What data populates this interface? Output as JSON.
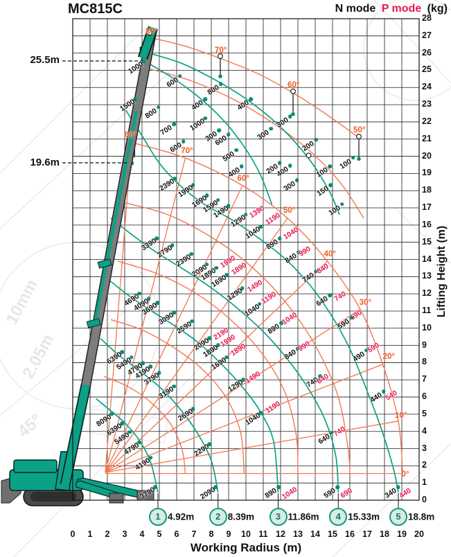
{
  "window": {
    "title": "MC815C"
  },
  "legend": {
    "n": "N mode",
    "p": "P mode",
    "unit": "(kg)"
  },
  "axes": {
    "x_label": "Working Radius (m)",
    "y_label": "Lifting Height (m)",
    "x_ticks": [
      0,
      1,
      2,
      3,
      4,
      5,
      6,
      7,
      8,
      9,
      10,
      11,
      12,
      13,
      14,
      15,
      16,
      17,
      18,
      19,
      20
    ],
    "y_ticks": [
      0,
      1,
      2,
      3,
      4,
      5,
      6,
      7,
      8,
      9,
      10,
      11,
      12,
      13,
      14,
      15,
      16,
      17,
      18,
      19,
      20,
      21,
      22,
      23,
      24,
      25,
      26,
      27,
      28
    ]
  },
  "height_markers": [
    {
      "label": "25.5m",
      "y": 25.5
    },
    {
      "label": "19.6m",
      "y": 19.6
    }
  ],
  "boom_stages": [
    {
      "no": "1",
      "radius_label": "4.92m",
      "r": 4.92
    },
    {
      "no": "2",
      "radius_label": "8.39m",
      "r": 8.39
    },
    {
      "no": "3",
      "radius_label": "11.86m",
      "r": 11.86
    },
    {
      "no": "4",
      "radius_label": "15.33m",
      "r": 15.33
    },
    {
      "no": "5",
      "radius_label": "18.8m",
      "r": 18.8
    }
  ],
  "colors": {
    "teal": "#0aa187",
    "orange": "#f4764f",
    "p_text": "#e8174f",
    "n_text": "#101010"
  },
  "watermark": [
    "10mm",
    "2.05m",
    "45°"
  ],
  "chart_data": {
    "type": "line",
    "title": "MC815C crane working range / rated load chart",
    "x_axis": "Working Radius (m)",
    "y_axis": "Lifting Height (m)",
    "xlim": [
      0,
      20
    ],
    "ylim": [
      0,
      28
    ],
    "grid": true,
    "legend_entries": [
      "N mode (kg)",
      "P mode (kg)"
    ],
    "angle_labels": [
      {
        "x": 4.55,
        "y": 27.25,
        "t": "80°"
      },
      {
        "x": 8.55,
        "y": 26.15,
        "t": "70°"
      },
      {
        "x": 12.75,
        "y": 24.15,
        "t": "60°"
      },
      {
        "x": 16.55,
        "y": 21.5,
        "t": "50°"
      },
      {
        "x": 3.35,
        "y": 21.25,
        "t": "80°"
      },
      {
        "x": 6.6,
        "y": 20.3,
        "t": "70°"
      },
      {
        "x": 9.85,
        "y": 18.7,
        "t": "60°"
      },
      {
        "x": 12.5,
        "y": 16.85,
        "t": "50°"
      },
      {
        "x": 14.85,
        "y": 14.3,
        "t": "40°"
      },
      {
        "x": 16.9,
        "y": 11.5,
        "t": "30°"
      },
      {
        "x": 18.25,
        "y": 8.35,
        "t": "20°"
      },
      {
        "x": 18.95,
        "y": 4.9,
        "t": "10°"
      },
      {
        "x": 19.2,
        "y": 1.5,
        "t": "0°"
      }
    ],
    "capacity_labels": [
      {
        "x": 3.65,
        "y": 25.15,
        "v": "1000",
        "m": "n"
      },
      {
        "x": 5.75,
        "y": 24.3,
        "v": "600",
        "m": "n"
      },
      {
        "x": 8.1,
        "y": 23.85,
        "v": "800",
        "m": "n"
      },
      {
        "x": 7.2,
        "y": 22.95,
        "v": "400",
        "m": "n"
      },
      {
        "x": 9.85,
        "y": 22.95,
        "v": "400",
        "m": "n"
      },
      {
        "x": 4.5,
        "y": 22.5,
        "v": "800",
        "m": "n"
      },
      {
        "x": 3.15,
        "y": 22.95,
        "v": "1500",
        "m": "n"
      },
      {
        "x": 7.2,
        "y": 21.85,
        "v": "1000",
        "m": "n"
      },
      {
        "x": 5.4,
        "y": 21.5,
        "v": "700",
        "m": "n"
      },
      {
        "x": 8.0,
        "y": 21.15,
        "v": "300",
        "m": "n"
      },
      {
        "x": 8.55,
        "y": 20.9,
        "v": "600",
        "m": "n"
      },
      {
        "x": 12.1,
        "y": 21.95,
        "v": "300",
        "m": "n"
      },
      {
        "x": 11.0,
        "y": 21.25,
        "v": "300",
        "m": "n"
      },
      {
        "x": 5.95,
        "y": 20.5,
        "v": "600",
        "m": "n"
      },
      {
        "x": 9.0,
        "y": 20.0,
        "v": "500",
        "m": "n"
      },
      {
        "x": 9.3,
        "y": 19.05,
        "v": "400",
        "m": "n"
      },
      {
        "x": 13.6,
        "y": 20.6,
        "v": "200",
        "m": "n"
      },
      {
        "x": 11.5,
        "y": 19.25,
        "v": "200",
        "m": "n"
      },
      {
        "x": 12.1,
        "y": 19.1,
        "v": "400",
        "m": "n"
      },
      {
        "x": 12.5,
        "y": 18.25,
        "v": "300",
        "m": "n"
      },
      {
        "x": 14.4,
        "y": 19.05,
        "v": "100",
        "m": "n"
      },
      {
        "x": 15.75,
        "y": 19.55,
        "v": "100",
        "m": "n"
      },
      {
        "x": 14.45,
        "y": 17.95,
        "v": "150",
        "m": "n"
      },
      {
        "x": 15.1,
        "y": 16.85,
        "v": "100",
        "m": "n"
      },
      {
        "x": 5.45,
        "y": 18.35,
        "v": "2390",
        "m": "n"
      },
      {
        "x": 6.5,
        "y": 17.95,
        "v": "1990",
        "m": "n"
      },
      {
        "x": 7.3,
        "y": 17.35,
        "v": "1690",
        "m": "n"
      },
      {
        "x": 7.95,
        "y": 17.1,
        "v": "1590",
        "m": "n"
      },
      {
        "x": 8.55,
        "y": 16.75,
        "v": "1490",
        "m": "n"
      },
      {
        "x": 9.55,
        "y": 16.25,
        "v": "1290",
        "m": "n"
      },
      {
        "x": 10.4,
        "y": 15.55,
        "v": "1040",
        "m": "n"
      },
      {
        "x": 10.65,
        "y": 16.75,
        "v": "1390",
        "m": "p"
      },
      {
        "x": 11.55,
        "y": 16.35,
        "v": "1190",
        "m": "p"
      },
      {
        "x": 11.5,
        "y": 14.85,
        "v": "890",
        "m": "n"
      },
      {
        "x": 12.6,
        "y": 15.5,
        "v": "1040",
        "m": "p"
      },
      {
        "x": 12.6,
        "y": 14.05,
        "v": "840",
        "m": "n"
      },
      {
        "x": 13.4,
        "y": 14.45,
        "v": "990",
        "m": "p"
      },
      {
        "x": 13.6,
        "y": 12.95,
        "v": "740",
        "m": "n"
      },
      {
        "x": 14.45,
        "y": 13.45,
        "v": "840",
        "m": "p"
      },
      {
        "x": 14.4,
        "y": 11.55,
        "v": "640",
        "m": "n"
      },
      {
        "x": 15.45,
        "y": 11.85,
        "v": "740",
        "m": "p"
      },
      {
        "x": 16.35,
        "y": 10.75,
        "v": "690",
        "m": "p"
      },
      {
        "x": 15.65,
        "y": 10.25,
        "v": "590",
        "m": "n"
      },
      {
        "x": 4.4,
        "y": 14.85,
        "v": "3390",
        "m": "n"
      },
      {
        "x": 5.3,
        "y": 14.45,
        "v": "2790",
        "m": "n"
      },
      {
        "x": 6.4,
        "y": 13.95,
        "v": "2390",
        "m": "n"
      },
      {
        "x": 7.3,
        "y": 13.35,
        "v": "2090",
        "m": "n"
      },
      {
        "x": 7.85,
        "y": 13.15,
        "v": "1890",
        "m": "n"
      },
      {
        "x": 8.45,
        "y": 12.75,
        "v": "1690",
        "m": "n"
      },
      {
        "x": 8.95,
        "y": 13.85,
        "v": "1990",
        "m": "p"
      },
      {
        "x": 9.6,
        "y": 13.45,
        "v": "1890",
        "m": "p"
      },
      {
        "x": 10.5,
        "y": 12.45,
        "v": "1490",
        "m": "p"
      },
      {
        "x": 9.35,
        "y": 11.95,
        "v": "1290",
        "m": "n"
      },
      {
        "x": 10.35,
        "y": 11.05,
        "v": "1040",
        "m": "n"
      },
      {
        "x": 11.3,
        "y": 11.75,
        "v": "1190",
        "m": "p"
      },
      {
        "x": 11.6,
        "y": 9.95,
        "v": "890",
        "m": "n"
      },
      {
        "x": 12.5,
        "y": 10.55,
        "v": "1040",
        "m": "p"
      },
      {
        "x": 12.55,
        "y": 8.45,
        "v": "840",
        "m": "n"
      },
      {
        "x": 13.35,
        "y": 8.95,
        "v": "990",
        "m": "p"
      },
      {
        "x": 16.5,
        "y": 8.35,
        "v": "490",
        "m": "n"
      },
      {
        "x": 17.35,
        "y": 8.85,
        "v": "590",
        "m": "p"
      },
      {
        "x": 13.85,
        "y": 6.85,
        "v": "740",
        "m": "n"
      },
      {
        "x": 14.45,
        "y": 7.05,
        "v": "840",
        "m": "p"
      },
      {
        "x": 17.5,
        "y": 5.95,
        "v": "440",
        "m": "n"
      },
      {
        "x": 18.4,
        "y": 6.1,
        "v": "540",
        "m": "p"
      },
      {
        "x": 3.4,
        "y": 11.65,
        "v": "4690",
        "m": "n"
      },
      {
        "x": 3.95,
        "y": 11.35,
        "v": "4090",
        "m": "n"
      },
      {
        "x": 4.45,
        "y": 11.1,
        "v": "3690",
        "m": "n"
      },
      {
        "x": 5.4,
        "y": 10.55,
        "v": "3090",
        "m": "n"
      },
      {
        "x": 6.45,
        "y": 10.05,
        "v": "2590",
        "m": "n"
      },
      {
        "x": 7.45,
        "y": 9.05,
        "v": "2090",
        "m": "n"
      },
      {
        "x": 7.95,
        "y": 8.65,
        "v": "1890",
        "m": "n"
      },
      {
        "x": 8.55,
        "y": 9.65,
        "v": "2190",
        "m": "p"
      },
      {
        "x": 8.95,
        "y": 9.25,
        "v": "1990",
        "m": "p"
      },
      {
        "x": 8.45,
        "y": 7.95,
        "v": "1690",
        "m": "n"
      },
      {
        "x": 9.55,
        "y": 8.75,
        "v": "1890",
        "m": "p"
      },
      {
        "x": 9.4,
        "y": 6.65,
        "v": "1290",
        "m": "n"
      },
      {
        "x": 10.4,
        "y": 7.15,
        "v": "1490",
        "m": "p"
      },
      {
        "x": 10.4,
        "y": 4.7,
        "v": "1040",
        "m": "n"
      },
      {
        "x": 11.55,
        "y": 5.4,
        "v": "1190",
        "m": "p"
      },
      {
        "x": 14.5,
        "y": 3.55,
        "v": "640",
        "m": "n"
      },
      {
        "x": 15.4,
        "y": 4.0,
        "v": "740",
        "m": "p"
      },
      {
        "x": 2.4,
        "y": 8.25,
        "v": "6390",
        "m": "n"
      },
      {
        "x": 2.95,
        "y": 7.95,
        "v": "5490",
        "m": "n"
      },
      {
        "x": 3.6,
        "y": 7.6,
        "v": "4790",
        "m": "n"
      },
      {
        "x": 4.05,
        "y": 7.4,
        "v": "4190",
        "m": "n"
      },
      {
        "x": 4.55,
        "y": 7.05,
        "v": "3790",
        "m": "n"
      },
      {
        "x": 5.4,
        "y": 6.25,
        "v": "3190",
        "m": "n"
      },
      {
        "x": 6.5,
        "y": 4.95,
        "v": "2690",
        "m": "n"
      },
      {
        "x": 7.45,
        "y": 2.9,
        "v": "2290",
        "m": "n"
      },
      {
        "x": 1.8,
        "y": 4.65,
        "v": "8090",
        "m": "n"
      },
      {
        "x": 2.4,
        "y": 4.1,
        "v": "6390",
        "m": "n"
      },
      {
        "x": 2.85,
        "y": 3.6,
        "v": "5490",
        "m": "n"
      },
      {
        "x": 3.4,
        "y": 3.0,
        "v": "4790",
        "m": "n"
      },
      {
        "x": 4.05,
        "y": 2.1,
        "v": "4190",
        "m": "n"
      },
      {
        "x": 4.3,
        "y": 0.4,
        "v": "3790",
        "m": "n"
      },
      {
        "x": 7.8,
        "y": 0.4,
        "v": "2090",
        "m": "n"
      },
      {
        "x": 11.45,
        "y": 0.4,
        "v": "890",
        "m": "n"
      },
      {
        "x": 12.5,
        "y": 0.4,
        "v": "1040",
        "m": "p"
      },
      {
        "x": 14.85,
        "y": 0.4,
        "v": "590",
        "m": "n"
      },
      {
        "x": 15.8,
        "y": 0.4,
        "v": "690",
        "m": "p"
      },
      {
        "x": 18.35,
        "y": 0.4,
        "v": "340",
        "m": "n"
      },
      {
        "x": 19.2,
        "y": 0.4,
        "v": "440",
        "m": "p"
      }
    ]
  }
}
